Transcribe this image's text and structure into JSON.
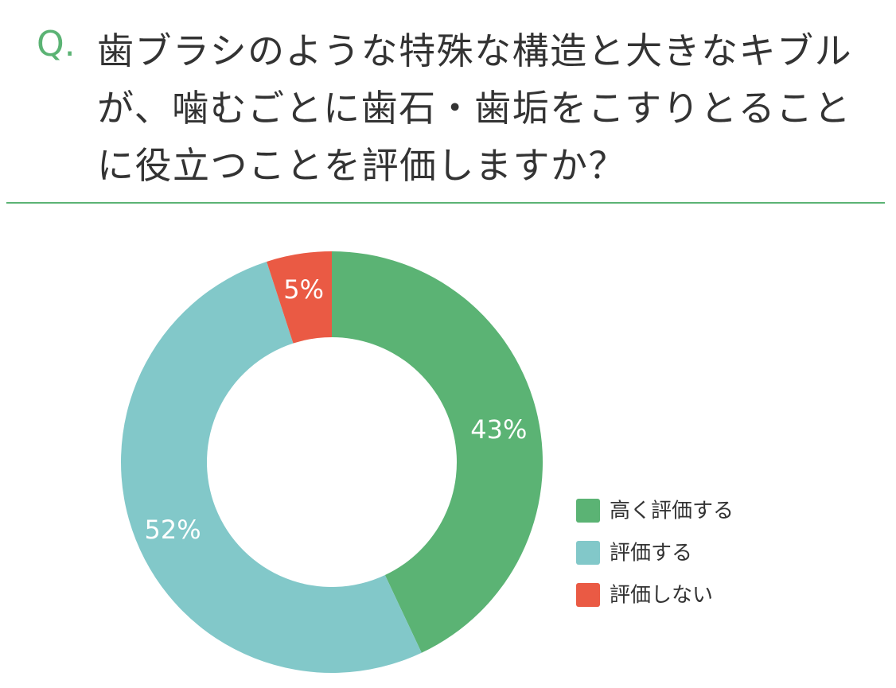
{
  "chart_data": {
    "type": "donut",
    "label": "Q.",
    "title": "歯ブラシのような特殊な構造と大きなキブルが、噛むごとに歯石・歯垢をこすりとることに役立つことを評価しますか？",
    "categories": [
      "高く評価する",
      "評価する",
      "評価しない"
    ],
    "values": [
      43,
      52,
      5
    ],
    "value_labels": [
      "43%",
      "52%",
      "5%"
    ],
    "colors": [
      "#5bb374",
      "#82c8c9",
      "#ea5a44"
    ]
  }
}
